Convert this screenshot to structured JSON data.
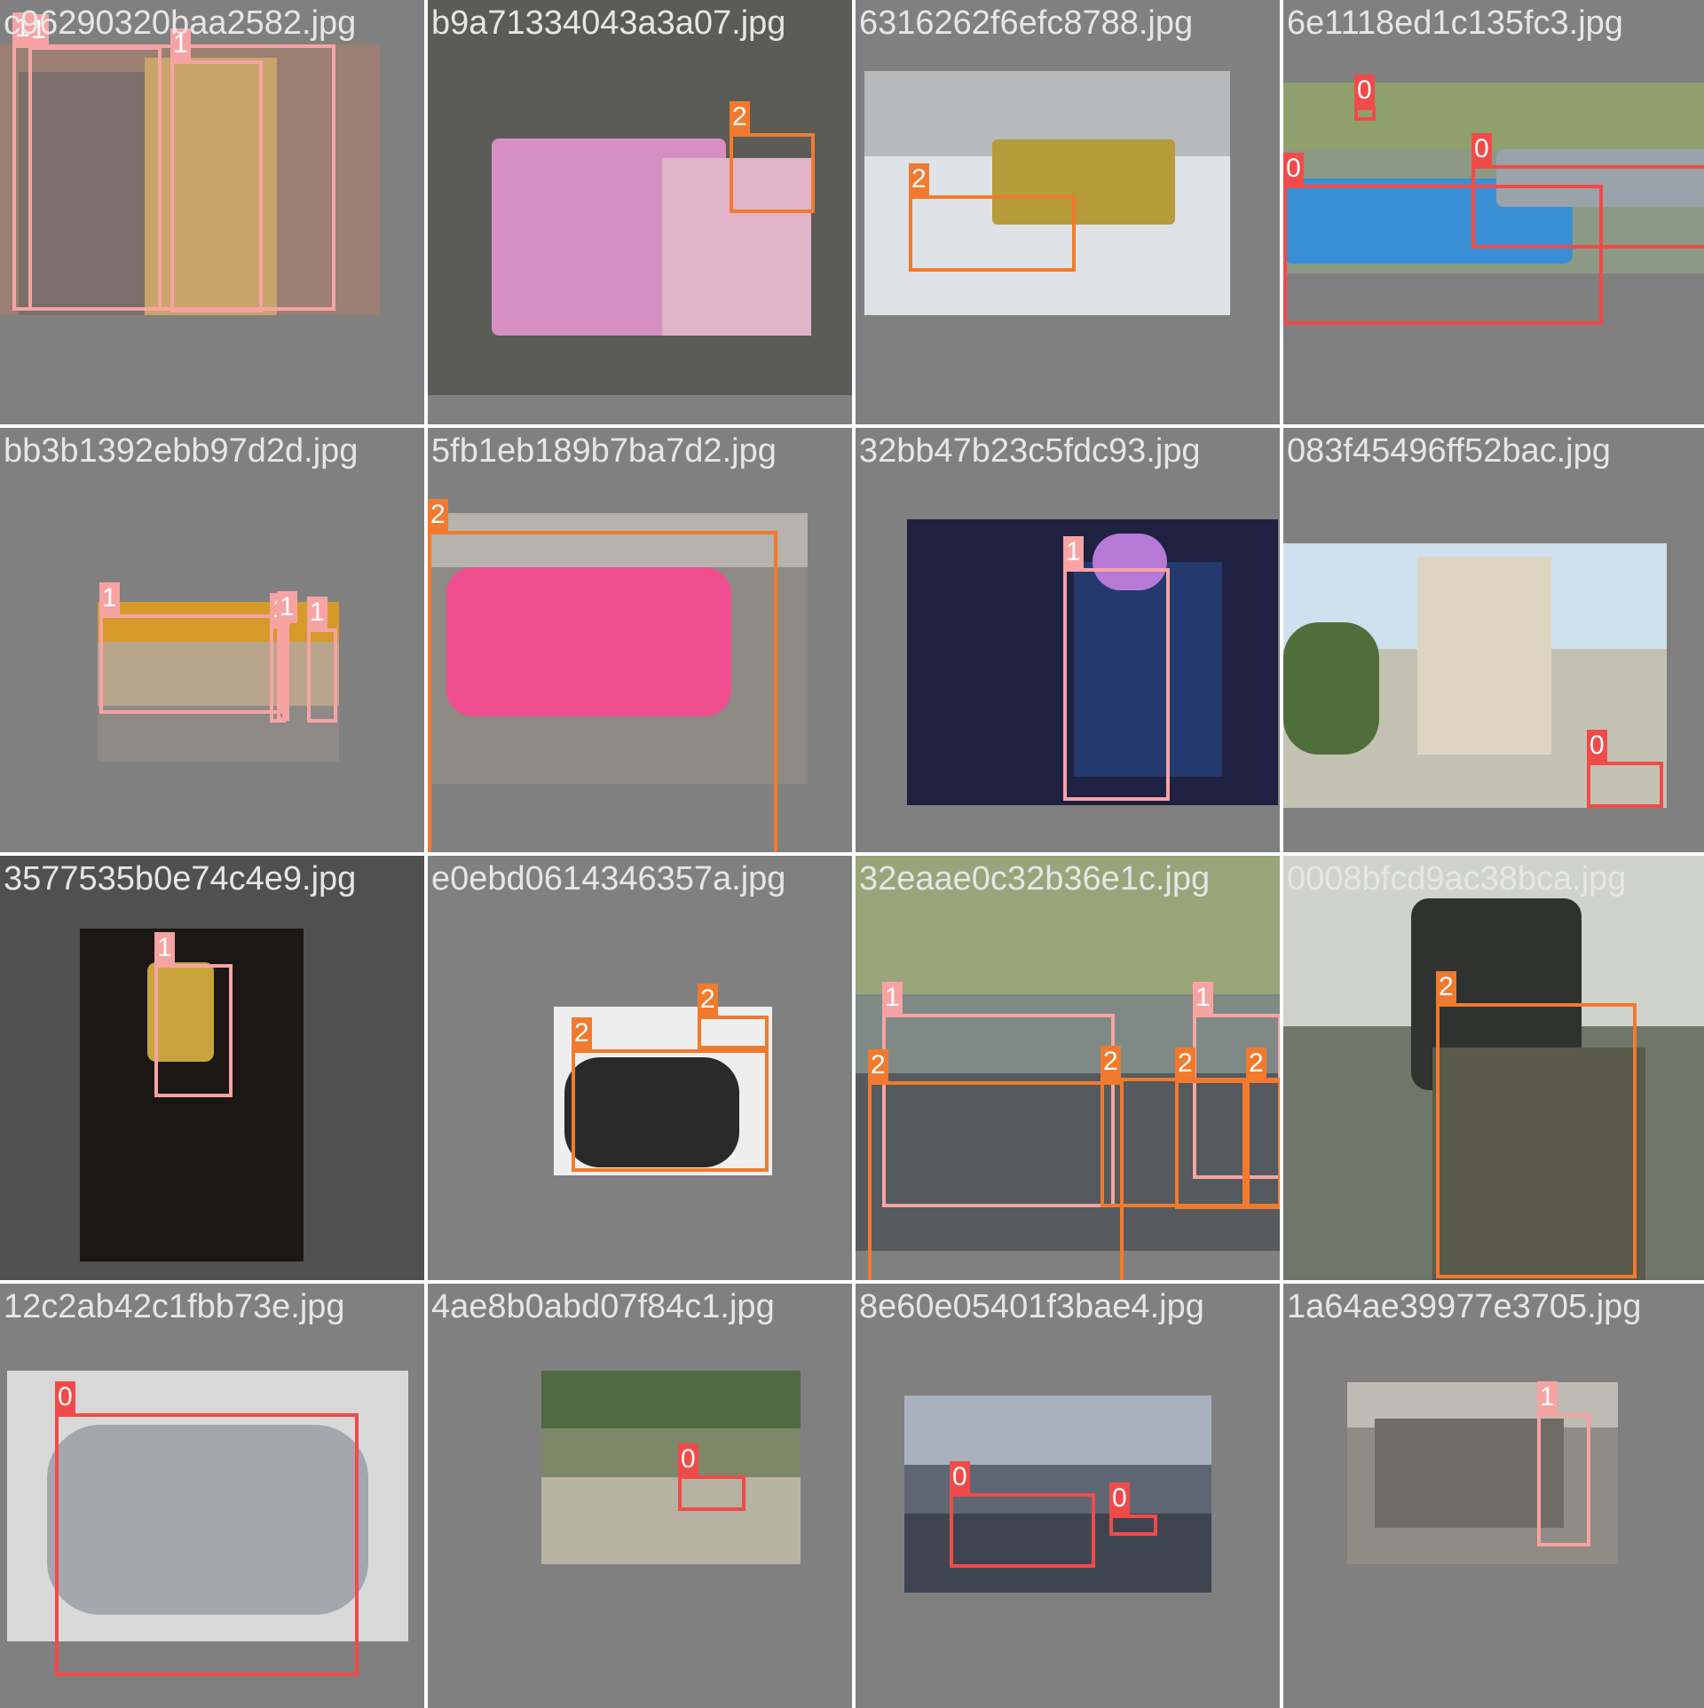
{
  "colors": {
    "class_0": "#f24a49",
    "class_1": "#f7a3a3",
    "class_2": "#f27a2e",
    "tile_background": "#808080",
    "filename_text": "#e6e6e6"
  },
  "tiles": [
    {
      "filename": "c96290320baa2582.jpg",
      "tone": "#9a7f72",
      "detections": [
        {
          "label": "1"
        },
        {
          "label": "1"
        },
        {
          "label": "1"
        }
      ]
    },
    {
      "filename": "b9a71334043a3a07.jpg",
      "tone": "#5a5c55",
      "detections": [
        {
          "label": "2"
        }
      ]
    },
    {
      "filename": "6316262f6efc8788.jpg",
      "tone": "#dfe2e6",
      "detections": [
        {
          "label": "2"
        }
      ]
    },
    {
      "filename": "6e1118ed1c135fc3.jpg",
      "tone": "#8c9a85",
      "detections": [
        {
          "label": "0"
        },
        {
          "label": "0"
        },
        {
          "label": "0"
        }
      ]
    },
    {
      "filename": "bb3b1392ebb97d2d.jpg",
      "tone": "#b9a58a",
      "detections": [
        {
          "label": "1"
        },
        {
          "label": "1"
        },
        {
          "label": "1"
        },
        {
          "label": "1"
        }
      ]
    },
    {
      "filename": "5fb1eb189b7ba7d2.jpg",
      "tone": "#8d8983",
      "detections": [
        {
          "label": "2"
        }
      ]
    },
    {
      "filename": "32bb47b23c5fdc93.jpg",
      "tone": "#1f2140",
      "detections": [
        {
          "label": "1"
        }
      ]
    },
    {
      "filename": "083f45496ff52bac.jpg",
      "tone": "#c4c2b3",
      "detections": [
        {
          "label": "0"
        }
      ]
    },
    {
      "filename": "3577535b0e74c4e9.jpg",
      "tone": "#1a1714",
      "detections": [
        {
          "label": "1"
        }
      ]
    },
    {
      "filename": "e0ebd0614346357a.jpg",
      "tone": "#eeeeee",
      "detections": [
        {
          "label": "2"
        },
        {
          "label": "2"
        }
      ]
    },
    {
      "filename": "32eaae0c32b36e1c.jpg",
      "tone": "#7f8a86",
      "detections": [
        {
          "label": "1"
        },
        {
          "label": "1"
        },
        {
          "label": "2"
        },
        {
          "label": "2"
        },
        {
          "label": "2"
        },
        {
          "label": "2"
        }
      ]
    },
    {
      "filename": "0008bfcd9ac38bca.jpg",
      "tone": "#6f766a",
      "detections": [
        {
          "label": "2"
        }
      ]
    },
    {
      "filename": "12c2ab42c1fbb73e.jpg",
      "tone": "#d8d8d8",
      "detections": [
        {
          "label": "0"
        }
      ]
    },
    {
      "filename": "4ae8b0abd07f84c1.jpg",
      "tone": "#7e8767",
      "detections": [
        {
          "label": "0"
        }
      ]
    },
    {
      "filename": "8e60e05401f3bae4.jpg",
      "tone": "#5f6673",
      "detections": [
        {
          "label": "0"
        },
        {
          "label": "0"
        }
      ]
    },
    {
      "filename": "1a64ae39977e3705.jpg",
      "tone": "#8f8c85",
      "detections": [
        {
          "label": "1"
        }
      ]
    }
  ]
}
